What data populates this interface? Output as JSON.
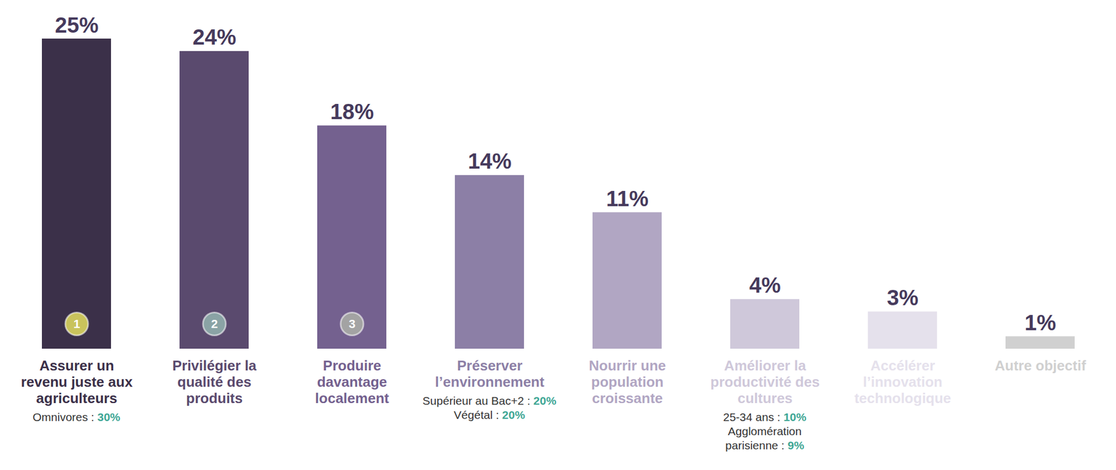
{
  "chart_data": {
    "type": "bar",
    "categories": [
      "Assurer un revenu juste aux agriculteurs",
      "Privilégier la qualité des produits",
      "Produire davantage localement",
      "Préserver l’environnement",
      "Nourrir une population croissante",
      "Améliorer la productivité des cultures",
      "Accélérer l’innovation technologique",
      "Autre objectif"
    ],
    "values": [
      25,
      24,
      18,
      14,
      11,
      4,
      3,
      1
    ],
    "value_labels": [
      "25%",
      "24%",
      "18%",
      "14%",
      "11%",
      "4%",
      "3%",
      "1%"
    ],
    "colors": [
      "#3b3049",
      "#5a4a6e",
      "#74618f",
      "#8c7fa6",
      "#b1a6c3",
      "#cfc8da",
      "#e5e1ec",
      "#d0d0d0"
    ],
    "ranks": [
      1,
      2,
      3,
      null,
      null,
      null,
      null,
      null
    ],
    "ylim": [
      0,
      25
    ],
    "data_labels": true,
    "tick_labels": false,
    "annotations": [
      {
        "category": "Assurer un revenu juste aux agriculteurs",
        "items": [
          {
            "label": "Omnivores :",
            "highlight": "30%"
          }
        ]
      },
      {
        "category": "Préserver l’environnement",
        "items": [
          {
            "label": "Supérieur au Bac+2 :",
            "highlight": "20%"
          },
          {
            "label": "Végétal :",
            "highlight": "20%"
          }
        ]
      },
      {
        "category": "Améliorer la productivité des cultures",
        "items": [
          {
            "label": "25-34 ans :",
            "highlight": "10%"
          },
          {
            "label": "Agglomération parisienne :",
            "highlight": "9%"
          }
        ]
      }
    ]
  }
}
